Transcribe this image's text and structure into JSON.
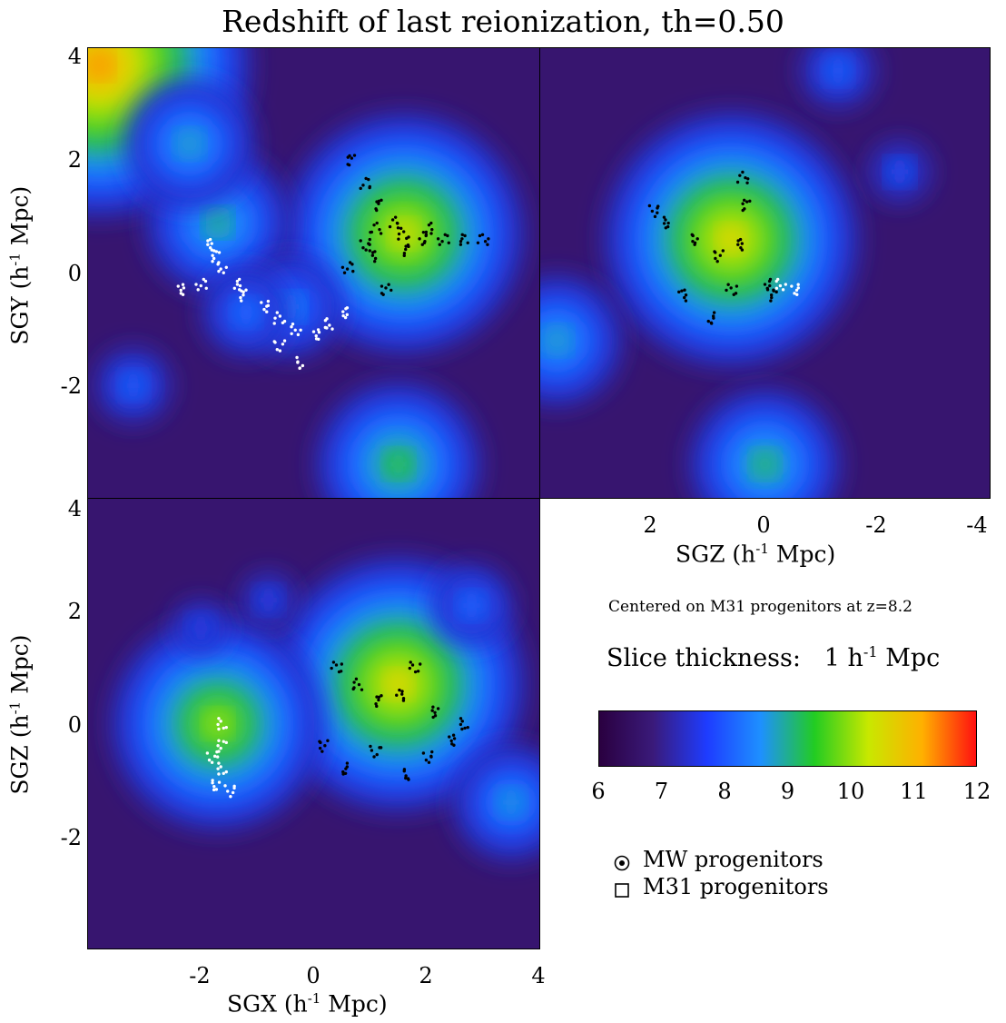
{
  "title": "Redshift of last reionization, th=0.50",
  "colors": {
    "low": "#2a0040",
    "mid": "#1e90ff",
    "green": "#22cc22",
    "high": "#ff1010"
  },
  "chart_data": [
    {
      "type": "heatmap",
      "panel": "top-left",
      "xlabel": "",
      "ylabel": "SGY (h-1 Mpc)",
      "xlim": [
        -4,
        4
      ],
      "ylim": [
        -4,
        4
      ],
      "yticks": [
        "4",
        "2",
        "0",
        "-2"
      ],
      "xticks": [],
      "field": "redshift of last reionization",
      "mw_progenitors": [
        [
          -1.9,
          0.5
        ],
        [
          -1.7,
          0.3
        ],
        [
          -1.6,
          0.1
        ],
        [
          -1.4,
          -0.2
        ],
        [
          -1.2,
          -0.4
        ],
        [
          -0.9,
          -0.6
        ],
        [
          -0.6,
          -0.8
        ],
        [
          -0.3,
          -1.0
        ],
        [
          0,
          -1.1
        ],
        [
          0.3,
          -0.9
        ],
        [
          0.5,
          -0.7
        ],
        [
          -0.2,
          -1.6
        ],
        [
          -0.6,
          -1.3
        ],
        [
          -2.4,
          -0.3
        ],
        [
          -2.0,
          -0.2
        ]
      ],
      "m31_progenitors": [
        [
          1.6,
          0.7
        ],
        [
          1.2,
          1.2
        ],
        [
          0.9,
          1.6
        ],
        [
          0.7,
          2.0
        ],
        [
          1.9,
          0.6
        ],
        [
          2.3,
          0.6
        ],
        [
          2.7,
          0.6
        ],
        [
          3.0,
          0.6
        ],
        [
          1.4,
          0.9
        ],
        [
          1.0,
          0.3
        ],
        [
          0.6,
          0.1
        ],
        [
          1.3,
          -0.3
        ],
        [
          1.7,
          0.4
        ],
        [
          2.0,
          0.8
        ],
        [
          1.1,
          0.8
        ],
        [
          0.9,
          0.5
        ]
      ],
      "peaks": [
        [
          -3.8,
          3.7,
          11.5
        ],
        [
          1.6,
          0.7,
          10.6
        ],
        [
          -1.7,
          0.9,
          9.2
        ],
        [
          -2.2,
          2.3,
          9.0
        ],
        [
          -0.4,
          -0.6,
          8.6
        ],
        [
          1.5,
          -3.4,
          9.5
        ],
        [
          -3.2,
          -2.0,
          8.2
        ],
        [
          -1.2,
          -0.7,
          8.4
        ]
      ]
    },
    {
      "type": "heatmap",
      "panel": "top-right",
      "xlabel": "SGZ (h-1 Mpc)",
      "ylabel": "",
      "xlim": [
        4,
        -4
      ],
      "ylim": [
        -4,
        4
      ],
      "xticks": [
        "2",
        "0",
        "-2",
        "-4"
      ],
      "yticks": [],
      "field": "redshift of last reionization",
      "mw_progenitors": [
        [
          -0.3,
          -0.2
        ],
        [
          -0.5,
          -0.3
        ]
      ],
      "m31_progenitors": [
        [
          0.5,
          0.5
        ],
        [
          0.3,
          1.2
        ],
        [
          0.8,
          0.3
        ],
        [
          1.2,
          0.6
        ],
        [
          1.7,
          0.9
        ],
        [
          0.0,
          -0.2
        ],
        [
          -0.2,
          -0.4
        ],
        [
          0.6,
          -0.3
        ],
        [
          1.5,
          -0.4
        ],
        [
          1.0,
          -0.8
        ],
        [
          0.4,
          1.7
        ],
        [
          2.0,
          1.1
        ]
      ],
      "peaks": [
        [
          0.6,
          0.6,
          10.8
        ],
        [
          3.7,
          -1.2,
          9.0
        ],
        [
          0.0,
          -3.4,
          9.3
        ],
        [
          -1.3,
          3.6,
          8.2
        ],
        [
          -2.4,
          1.8,
          8.0
        ]
      ]
    },
    {
      "type": "heatmap",
      "panel": "bottom-left",
      "xlabel": "SGX (h-1 Mpc)",
      "ylabel": "SGZ (h-1 Mpc)",
      "xlim": [
        -4,
        4
      ],
      "ylim": [
        -4,
        4
      ],
      "xticks": [
        "-2",
        "0",
        "2",
        "4"
      ],
      "yticks": [
        "4",
        "2",
        "0",
        "-2"
      ],
      "field": "redshift of last reionization",
      "mw_progenitors": [
        [
          -1.6,
          0.0
        ],
        [
          -1.6,
          -0.4
        ],
        [
          -1.6,
          -0.8
        ],
        [
          -1.7,
          -1.1
        ],
        [
          -1.5,
          -1.2
        ],
        [
          -1.8,
          -0.6
        ]
      ],
      "m31_progenitors": [
        [
          1.5,
          0.5
        ],
        [
          1.8,
          1.0
        ],
        [
          1.2,
          0.4
        ],
        [
          2.2,
          0.2
        ],
        [
          2.7,
          0.0
        ],
        [
          0.4,
          1.0
        ],
        [
          0.8,
          0.7
        ],
        [
          0.2,
          -0.4
        ],
        [
          0.5,
          -0.8
        ],
        [
          1.1,
          -0.5
        ],
        [
          2.0,
          -0.6
        ],
        [
          2.4,
          -0.3
        ],
        [
          1.7,
          -0.9
        ]
      ],
      "peaks": [
        [
          1.5,
          0.7,
          10.8
        ],
        [
          -1.7,
          0.0,
          10.2
        ],
        [
          3.5,
          -1.4,
          8.8
        ],
        [
          2.8,
          2.1,
          8.3
        ],
        [
          -0.8,
          2.2,
          7.9
        ],
        [
          -2.0,
          1.7,
          7.9
        ]
      ]
    }
  ],
  "annotation": "Centered on M31 progenitors at z=8.2",
  "slice_label": "Slice thickness:",
  "slice_value": "1 h",
  "slice_unit": " Mpc",
  "axis_text": {
    "sgy": "SGY (h",
    "sgz": "SGZ (h",
    "sgx": "SGX (h",
    "unit_close": " Mpc)",
    "sup": "-1"
  },
  "colorbar": {
    "min": 6,
    "max": 12,
    "ticks": [
      "6",
      "7",
      "8",
      "9",
      "10",
      "11",
      "12"
    ],
    "stops": [
      "#2a0040",
      "#3a1a7a",
      "#1e3cff",
      "#1e90ff",
      "#22cc22",
      "#c8e800",
      "#ffb000",
      "#ff1010"
    ]
  },
  "legend": {
    "mw": "MW progenitors",
    "m31": "M31 progenitors"
  }
}
